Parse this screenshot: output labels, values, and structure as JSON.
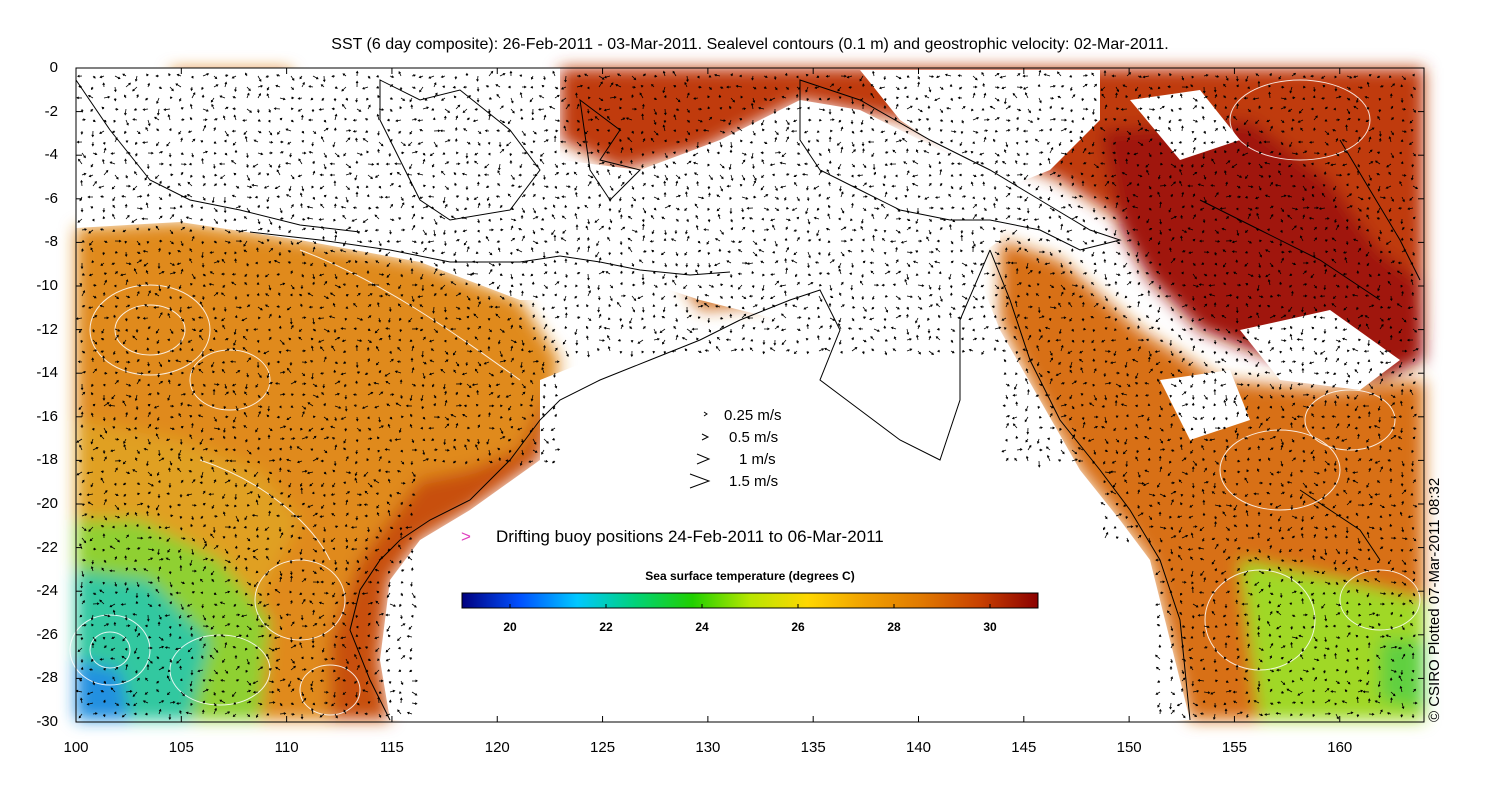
{
  "title": "SST (6 day composite): 26-Feb-2011 - 03-Mar-2011. Sealevel contours (0.1 m) and geostrophic velocity: 02-Mar-2011.",
  "credit": "© CSIRO Plotted 07-Mar-2011 08:32",
  "axes": {
    "x_ticks": [
      "100",
      "105",
      "110",
      "115",
      "120",
      "125",
      "130",
      "135",
      "140",
      "145",
      "150",
      "155",
      "160"
    ],
    "y_ticks": [
      "0",
      "-2",
      "-4",
      "-6",
      "-8",
      "-10",
      "-12",
      "-14",
      "-16",
      "-18",
      "-20",
      "-22",
      "-24",
      "-26",
      "-28",
      "-30"
    ],
    "x_range": [
      100,
      164
    ],
    "y_range": [
      -30,
      0
    ]
  },
  "velocity_legend": [
    {
      "label": "0.25 m/s",
      "speed": 0.25
    },
    {
      "label": "0.5 m/s",
      "speed": 0.5
    },
    {
      "label": "1 m/s",
      "speed": 1
    },
    {
      "label": "1.5 m/s",
      "speed": 1.5
    }
  ],
  "buoy_legend": {
    "marker": ">",
    "label": "Drifting buoy positions 24-Feb-2011 to 06-Mar-2011",
    "color": "#e040c0"
  },
  "colorbar": {
    "title": "Sea surface temperature (degrees C)",
    "ticks": [
      "20",
      "22",
      "24",
      "26",
      "28",
      "30"
    ],
    "range": [
      19,
      31
    ],
    "colors": [
      "#00007f",
      "#0050ff",
      "#00c8ff",
      "#00d27a",
      "#20d000",
      "#b8e600",
      "#ffd700",
      "#f0a000",
      "#e07800",
      "#c84000",
      "#8b0000"
    ]
  }
}
